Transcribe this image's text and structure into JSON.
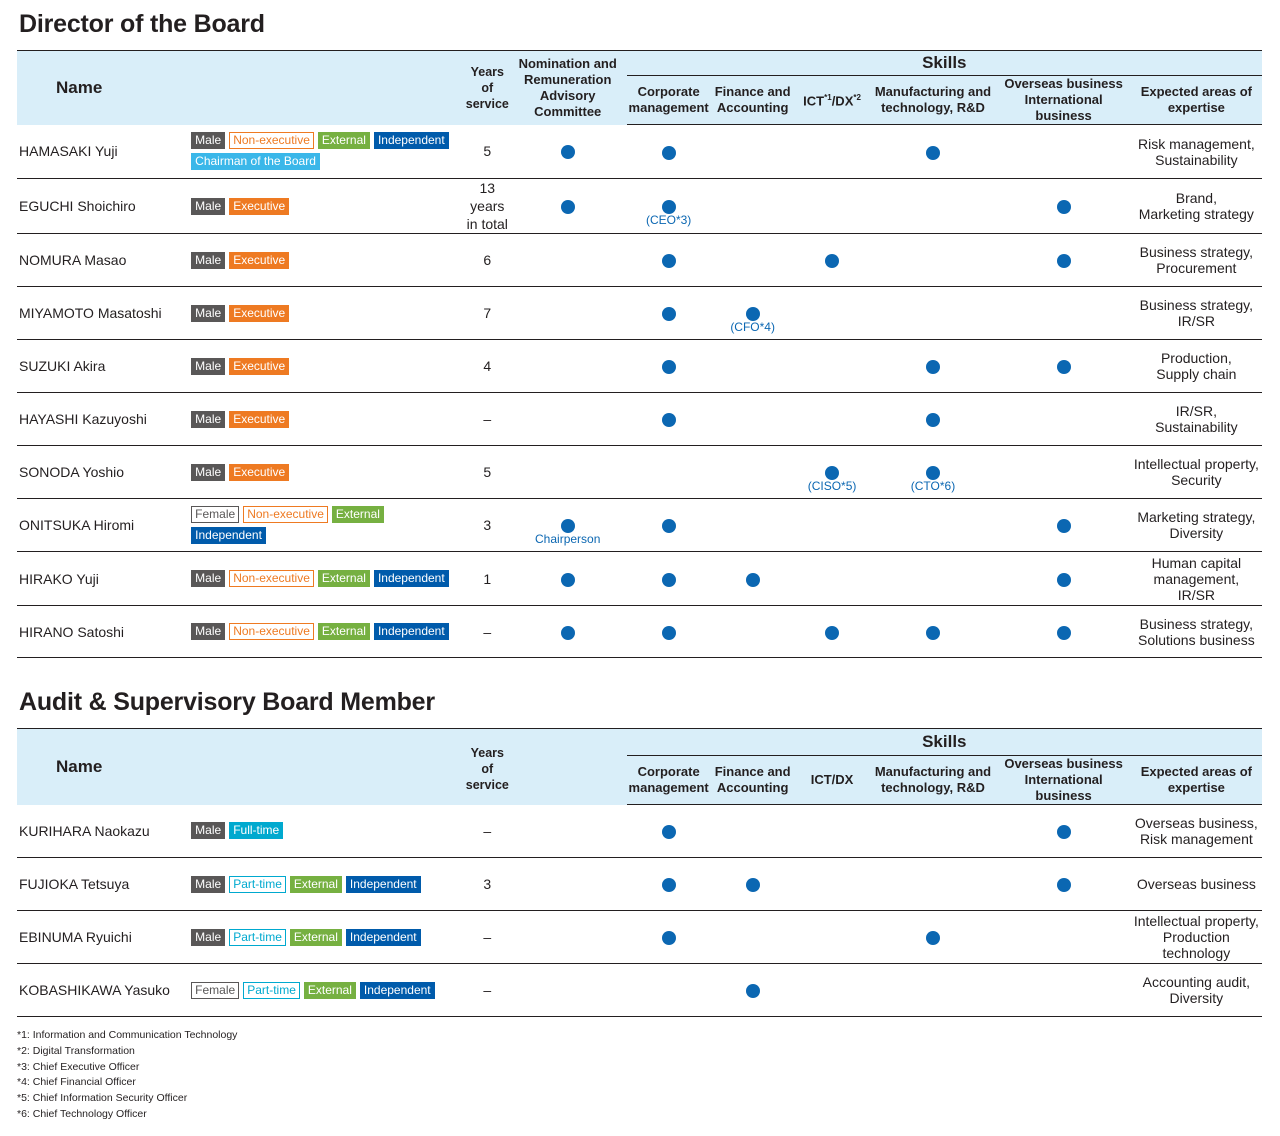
{
  "directors": {
    "title": "Director of the Board",
    "headers": {
      "name": "Name",
      "years": "Years of\nservice",
      "nomination": "Nomination and\nRemuneration\nAdvisory Committee",
      "skills": "Skills",
      "corporate": "Corporate\nmanagement",
      "finance": "Finance and\nAccounting",
      "ict_prefix": "ICT",
      "ict_sup1": "*1",
      "ict_mid": "/DX",
      "ict_sup2": "*2",
      "manufacturing": "Manufacturing and\ntechnology, R&D",
      "overseas": "Overseas business\nInternational business",
      "expected": "Expected areas of\nexpertise"
    },
    "rows": [
      {
        "name": "HAMASAKI Yuji",
        "tags": [
          {
            "label": "Male",
            "type": "male"
          },
          {
            "label": "Non-executive",
            "type": "nonexec"
          },
          {
            "label": "External",
            "type": "external"
          },
          {
            "label": "Independent",
            "type": "independent"
          },
          {
            "label": "Chairman of the Board",
            "type": "chairman"
          }
        ],
        "years": "5",
        "nomination": true,
        "nomination_note": "",
        "corporate": true,
        "corporate_note": "",
        "finance": false,
        "finance_note": "",
        "ict": false,
        "ict_note": "",
        "manufacturing": true,
        "manufacturing_note": "",
        "overseas": false,
        "expected": "Risk management,\nSustainability"
      },
      {
        "name": "EGUCHI Shoichiro",
        "tags": [
          {
            "label": "Male",
            "type": "male"
          },
          {
            "label": "Executive",
            "type": "executive"
          }
        ],
        "years": "13 years\nin total",
        "nomination": true,
        "nomination_note": "",
        "corporate": true,
        "corporate_note": "(CEO*3)",
        "finance": false,
        "finance_note": "",
        "ict": false,
        "ict_note": "",
        "manufacturing": false,
        "manufacturing_note": "",
        "overseas": true,
        "expected": "Brand,\nMarketing strategy"
      },
      {
        "name": "NOMURA Masao",
        "tags": [
          {
            "label": "Male",
            "type": "male"
          },
          {
            "label": "Executive",
            "type": "executive"
          }
        ],
        "years": "6",
        "nomination": false,
        "nomination_note": "",
        "corporate": true,
        "corporate_note": "",
        "finance": false,
        "finance_note": "",
        "ict": true,
        "ict_note": "",
        "manufacturing": false,
        "manufacturing_note": "",
        "overseas": true,
        "expected": "Business strategy,\nProcurement"
      },
      {
        "name": "MIYAMOTO Masatoshi",
        "tags": [
          {
            "label": "Male",
            "type": "male"
          },
          {
            "label": "Executive",
            "type": "executive"
          }
        ],
        "years": "7",
        "nomination": false,
        "nomination_note": "",
        "corporate": true,
        "corporate_note": "",
        "finance": true,
        "finance_note": "(CFO*4)",
        "ict": false,
        "ict_note": "",
        "manufacturing": false,
        "manufacturing_note": "",
        "overseas": false,
        "expected": "Business strategy,\nIR/SR"
      },
      {
        "name": "SUZUKI Akira",
        "tags": [
          {
            "label": "Male",
            "type": "male"
          },
          {
            "label": "Executive",
            "type": "executive"
          }
        ],
        "years": "4",
        "nomination": false,
        "nomination_note": "",
        "corporate": true,
        "corporate_note": "",
        "finance": false,
        "finance_note": "",
        "ict": false,
        "ict_note": "",
        "manufacturing": true,
        "manufacturing_note": "",
        "overseas": true,
        "expected": "Production,\nSupply chain"
      },
      {
        "name": "HAYASHI Kazuyoshi",
        "tags": [
          {
            "label": "Male",
            "type": "male"
          },
          {
            "label": "Executive",
            "type": "executive"
          }
        ],
        "years": "–",
        "nomination": false,
        "nomination_note": "",
        "corporate": true,
        "corporate_note": "",
        "finance": false,
        "finance_note": "",
        "ict": false,
        "ict_note": "",
        "manufacturing": true,
        "manufacturing_note": "",
        "overseas": false,
        "expected": "IR/SR,\nSustainability"
      },
      {
        "name": "SONODA Yoshio",
        "tags": [
          {
            "label": "Male",
            "type": "male"
          },
          {
            "label": "Executive",
            "type": "executive"
          }
        ],
        "years": "5",
        "nomination": false,
        "nomination_note": "",
        "corporate": false,
        "corporate_note": "",
        "finance": false,
        "finance_note": "",
        "ict": true,
        "ict_note": "(CISO*5)",
        "manufacturing": true,
        "manufacturing_note": "(CTO*6)",
        "overseas": false,
        "expected": "Intellectual property,\nSecurity"
      },
      {
        "name": "ONITSUKA Hiromi",
        "tags": [
          {
            "label": "Female",
            "type": "female"
          },
          {
            "label": "Non-executive",
            "type": "nonexec"
          },
          {
            "label": "External",
            "type": "external"
          },
          {
            "label": "Independent",
            "type": "independent"
          }
        ],
        "years": "3",
        "nomination": true,
        "nomination_note": "Chairperson",
        "corporate": true,
        "corporate_note": "",
        "finance": false,
        "finance_note": "",
        "ict": false,
        "ict_note": "",
        "manufacturing": false,
        "manufacturing_note": "",
        "overseas": true,
        "expected": "Marketing strategy,\nDiversity"
      },
      {
        "name": "HIRAKO Yuji",
        "tags": [
          {
            "label": "Male",
            "type": "male"
          },
          {
            "label": "Non-executive",
            "type": "nonexec"
          },
          {
            "label": "External",
            "type": "external"
          },
          {
            "label": "Independent",
            "type": "independent"
          }
        ],
        "years": "1",
        "nomination": true,
        "nomination_note": "",
        "corporate": true,
        "corporate_note": "",
        "finance": true,
        "finance_note": "",
        "ict": false,
        "ict_note": "",
        "manufacturing": false,
        "manufacturing_note": "",
        "overseas": true,
        "expected": "Human capital\nmanagement,\nIR/SR"
      },
      {
        "name": "HIRANO Satoshi",
        "tags": [
          {
            "label": "Male",
            "type": "male"
          },
          {
            "label": "Non-executive",
            "type": "nonexec"
          },
          {
            "label": "External",
            "type": "external"
          },
          {
            "label": "Independent",
            "type": "independent"
          }
        ],
        "years": "–",
        "nomination": true,
        "nomination_note": "",
        "corporate": true,
        "corporate_note": "",
        "finance": false,
        "finance_note": "",
        "ict": true,
        "ict_note": "",
        "manufacturing": true,
        "manufacturing_note": "",
        "overseas": true,
        "expected": "Business strategy,\nSolutions business"
      }
    ]
  },
  "audit": {
    "title": "Audit & Supervisory Board Member",
    "headers": {
      "name": "Name",
      "years": "Years of\nservice",
      "skills": "Skills",
      "corporate": "Corporate\nmanagement",
      "finance": "Finance and\nAccounting",
      "ict": "ICT/DX",
      "manufacturing": "Manufacturing and\ntechnology, R&D",
      "overseas": "Overseas business\nInternational business",
      "expected": "Expected areas of\nexpertise"
    },
    "rows": [
      {
        "name": "KURIHARA Naokazu",
        "tags": [
          {
            "label": "Male",
            "type": "male"
          },
          {
            "label": "Full-time",
            "type": "fulltime"
          }
        ],
        "years": "–",
        "corporate": true,
        "finance": false,
        "ict": false,
        "manufacturing": false,
        "overseas": true,
        "expected": "Overseas business,\nRisk management"
      },
      {
        "name": "FUJIOKA Tetsuya",
        "tags": [
          {
            "label": "Male",
            "type": "male"
          },
          {
            "label": "Part-time",
            "type": "parttime"
          },
          {
            "label": "External",
            "type": "external"
          },
          {
            "label": "Independent",
            "type": "independent"
          }
        ],
        "years": "3",
        "corporate": true,
        "finance": true,
        "ict": false,
        "manufacturing": false,
        "overseas": true,
        "expected": "Overseas business"
      },
      {
        "name": "EBINUMA Ryuichi",
        "tags": [
          {
            "label": "Male",
            "type": "male"
          },
          {
            "label": "Part-time",
            "type": "parttime"
          },
          {
            "label": "External",
            "type": "external"
          },
          {
            "label": "Independent",
            "type": "independent"
          }
        ],
        "years": "–",
        "corporate": true,
        "finance": false,
        "ict": false,
        "manufacturing": true,
        "overseas": false,
        "expected": "Intellectual property,\nProduction technology"
      },
      {
        "name": "KOBASHIKAWA Yasuko",
        "tags": [
          {
            "label": "Female",
            "type": "female"
          },
          {
            "label": "Part-time",
            "type": "parttime"
          },
          {
            "label": "External",
            "type": "external"
          },
          {
            "label": "Independent",
            "type": "independent"
          }
        ],
        "years": "–",
        "corporate": false,
        "finance": true,
        "ict": false,
        "manufacturing": false,
        "overseas": false,
        "expected": "Accounting audit,\nDiversity"
      }
    ]
  },
  "footnotes": [
    "*1: Information and Communication Technology",
    "*2: Digital Transformation",
    "*3: Chief Executive Officer",
    "*4: Chief Financial Officer",
    "*5: Chief Information Security Officer",
    "*6: Chief Technology Officer"
  ],
  "colors": {
    "dot": "#0b67b2",
    "header_bg": "#d9eef9",
    "executive": "#ee7a22",
    "external": "#76b041",
    "independent": "#005bab",
    "chairman": "#3ab7e9",
    "fulltime": "#00a9cf",
    "male": "#595757"
  }
}
